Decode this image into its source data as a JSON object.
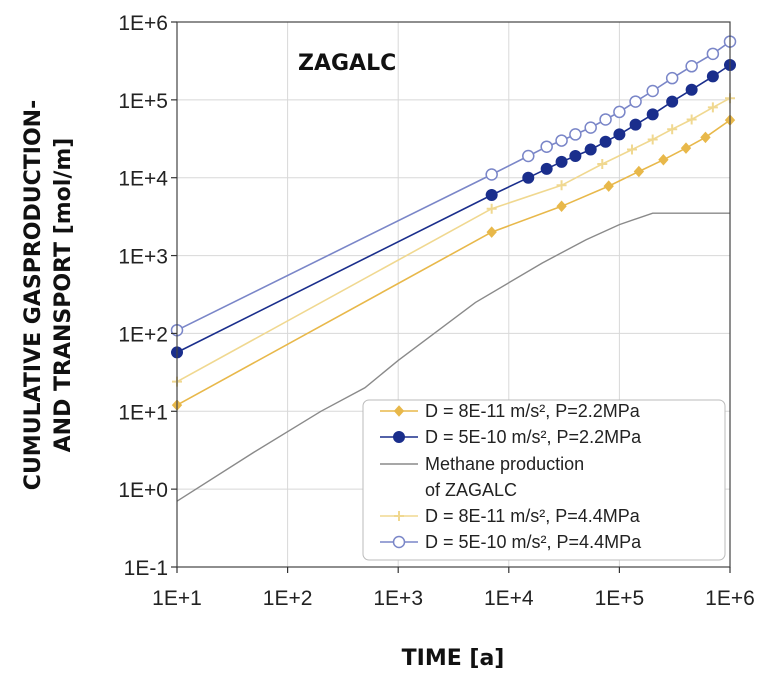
{
  "chart_data": {
    "type": "line",
    "title": "",
    "annotation": "ZAGALC",
    "xlabel": "TIME [a]",
    "ylabel_line1": "CUMULATIVE GASPRODUCTION-",
    "ylabel_line2": "AND TRANSPORT [mol/m]",
    "x_scale": "log",
    "y_scale": "log",
    "xlim": [
      10,
      1000000
    ],
    "ylim": [
      0.1,
      1000000
    ],
    "x_ticks": [
      {
        "value": 10,
        "label": "1E+1"
      },
      {
        "value": 100,
        "label": "1E+2"
      },
      {
        "value": 1000,
        "label": "1E+3"
      },
      {
        "value": 10000,
        "label": "1E+4"
      },
      {
        "value": 100000,
        "label": "1E+5"
      },
      {
        "value": 1000000,
        "label": "1E+6"
      }
    ],
    "y_ticks": [
      {
        "value": 0.1,
        "label": "1E-1"
      },
      {
        "value": 1,
        "label": "1E+0"
      },
      {
        "value": 10,
        "label": "1E+1"
      },
      {
        "value": 100,
        "label": "1E+2"
      },
      {
        "value": 1000,
        "label": "1E+3"
      },
      {
        "value": 10000,
        "label": "1E+4"
      },
      {
        "value": 100000,
        "label": "1E+5"
      },
      {
        "value": 1000000,
        "label": "1E+6"
      }
    ],
    "grid": true,
    "legend_position": "bottom-right",
    "series": [
      {
        "legend_label": "D = 8E-11 m/s², P=2.2MPa",
        "color": "#e8b84a",
        "marker": "filled-diamond",
        "x": [
          10,
          7000,
          30000,
          80000,
          150000,
          250000,
          400000,
          600000,
          1000000
        ],
        "y": [
          12,
          2000,
          4300,
          7800,
          12000,
          17000,
          24000,
          33000,
          55000
        ]
      },
      {
        "legend_label": "D = 5E-10 m/s², P=2.2MPa",
        "color": "#1a2e8c",
        "marker": "filled-circle",
        "x": [
          10,
          7000,
          15000,
          22000,
          30000,
          40000,
          55000,
          75000,
          100000,
          140000,
          200000,
          300000,
          450000,
          700000,
          1000000
        ],
        "y": [
          57,
          6000,
          10000,
          13000,
          16000,
          19000,
          23000,
          29000,
          36000,
          48000,
          65000,
          95000,
          135000,
          200000,
          280000
        ]
      },
      {
        "legend_label": "Methane production",
        "legend_label2": "of ZAGALC",
        "color": "#8a8a8a",
        "marker": "none",
        "x": [
          10,
          50,
          200,
          500,
          1000,
          5000,
          20000,
          50000,
          100000,
          200000,
          300000,
          1000000
        ],
        "y": [
          0.7,
          3,
          10,
          20,
          45,
          250,
          800,
          1600,
          2500,
          3500,
          3500,
          3500
        ]
      },
      {
        "legend_label": "D = 8E-11 m/s², P=4.4MPa",
        "color": "#f0d890",
        "marker": "plus",
        "x": [
          10,
          7000,
          30000,
          70000,
          130000,
          200000,
          300000,
          450000,
          700000,
          1000000
        ],
        "y": [
          24,
          4000,
          8000,
          15000,
          23000,
          31000,
          42000,
          56000,
          80000,
          105000
        ]
      },
      {
        "legend_label": "D = 5E-10 m/s², P=4.4MPa",
        "color": "#7a86c8",
        "marker": "open-circle",
        "x": [
          10,
          7000,
          15000,
          22000,
          30000,
          40000,
          55000,
          75000,
          100000,
          140000,
          200000,
          300000,
          450000,
          700000,
          1000000
        ],
        "y": [
          110,
          11000,
          19000,
          25000,
          30000,
          36000,
          44000,
          56000,
          70000,
          95000,
          130000,
          190000,
          270000,
          390000,
          560000
        ]
      }
    ]
  }
}
